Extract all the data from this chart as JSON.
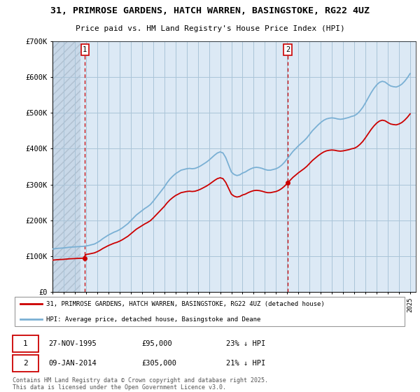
{
  "title": "31, PRIMROSE GARDENS, HATCH WARREN, BASINGSTOKE, RG22 4UZ",
  "subtitle": "Price paid vs. HM Land Registry's House Price Index (HPI)",
  "purchase1_date": "27-NOV-1995",
  "purchase1_price": 95000,
  "purchase1_label": "23% ↓ HPI",
  "purchase2_date": "09-JAN-2014",
  "purchase2_price": 305000,
  "purchase2_label": "21% ↓ HPI",
  "legend_line1": "31, PRIMROSE GARDENS, HATCH WARREN, BASINGSTOKE, RG22 4UZ (detached house)",
  "legend_line2": "HPI: Average price, detached house, Basingstoke and Deane",
  "footer": "Contains HM Land Registry data © Crown copyright and database right 2025.\nThis data is licensed under the Open Government Licence v3.0.",
  "ylim": [
    0,
    700000
  ],
  "yticks": [
    0,
    100000,
    200000,
    300000,
    400000,
    500000,
    600000,
    700000
  ],
  "ytick_labels": [
    "£0",
    "£100K",
    "£200K",
    "£300K",
    "£400K",
    "£500K",
    "£600K",
    "£700K"
  ],
  "red_color": "#cc0000",
  "blue_color": "#7ab0d4",
  "background_color": "#dce9f5",
  "hatch_area_color": "#e8e8e8",
  "grid_color": "#aac4d8",
  "purchase1_year": 1995.9,
  "purchase2_year": 2014.05,
  "xmin": 1993.0,
  "xmax": 2025.5,
  "hpi_years": [
    1993.0,
    1993.25,
    1993.5,
    1993.75,
    1994.0,
    1994.25,
    1994.5,
    1994.75,
    1995.0,
    1995.25,
    1995.5,
    1995.75,
    1996.0,
    1996.25,
    1996.5,
    1996.75,
    1997.0,
    1997.25,
    1997.5,
    1997.75,
    1998.0,
    1998.25,
    1998.5,
    1998.75,
    1999.0,
    1999.25,
    1999.5,
    1999.75,
    2000.0,
    2000.25,
    2000.5,
    2000.75,
    2001.0,
    2001.25,
    2001.5,
    2001.75,
    2002.0,
    2002.25,
    2002.5,
    2002.75,
    2003.0,
    2003.25,
    2003.5,
    2003.75,
    2004.0,
    2004.25,
    2004.5,
    2004.75,
    2005.0,
    2005.25,
    2005.5,
    2005.75,
    2006.0,
    2006.25,
    2006.5,
    2006.75,
    2007.0,
    2007.25,
    2007.5,
    2007.75,
    2008.0,
    2008.25,
    2008.5,
    2008.75,
    2009.0,
    2009.25,
    2009.5,
    2009.75,
    2010.0,
    2010.25,
    2010.5,
    2010.75,
    2011.0,
    2011.25,
    2011.5,
    2011.75,
    2012.0,
    2012.25,
    2012.5,
    2012.75,
    2013.0,
    2013.25,
    2013.5,
    2013.75,
    2014.0,
    2014.25,
    2014.5,
    2014.75,
    2015.0,
    2015.25,
    2015.5,
    2015.75,
    2016.0,
    2016.25,
    2016.5,
    2016.75,
    2017.0,
    2017.25,
    2017.5,
    2017.75,
    2018.0,
    2018.25,
    2018.5,
    2018.75,
    2019.0,
    2019.25,
    2019.5,
    2019.75,
    2020.0,
    2020.25,
    2020.5,
    2020.75,
    2021.0,
    2021.25,
    2021.5,
    2021.75,
    2022.0,
    2022.25,
    2022.5,
    2022.75,
    2023.0,
    2023.25,
    2023.5,
    2023.75,
    2024.0,
    2024.25,
    2024.5,
    2024.75,
    2025.0
  ],
  "hpi_values": [
    120000,
    121000,
    122000,
    122500,
    123000,
    124000,
    125000,
    125500,
    126000,
    126500,
    127000,
    127500,
    128500,
    130000,
    132000,
    134000,
    138000,
    143000,
    149000,
    154000,
    159000,
    163000,
    167000,
    170000,
    174000,
    179000,
    185000,
    191000,
    199000,
    207000,
    215000,
    221000,
    227000,
    233000,
    238000,
    244000,
    253000,
    263000,
    273000,
    283000,
    293000,
    305000,
    315000,
    323000,
    330000,
    335000,
    340000,
    342000,
    344000,
    345000,
    344000,
    345000,
    348000,
    352000,
    357000,
    362000,
    368000,
    375000,
    382000,
    388000,
    391000,
    388000,
    375000,
    355000,
    335000,
    328000,
    325000,
    327000,
    332000,
    335000,
    340000,
    344000,
    347000,
    348000,
    347000,
    345000,
    342000,
    340000,
    340000,
    342000,
    344000,
    348000,
    354000,
    362000,
    372000,
    382000,
    392000,
    400000,
    408000,
    415000,
    422000,
    430000,
    440000,
    450000,
    458000,
    466000,
    473000,
    479000,
    483000,
    485000,
    486000,
    485000,
    483000,
    482000,
    483000,
    485000,
    487000,
    490000,
    492000,
    497000,
    505000,
    515000,
    528000,
    542000,
    556000,
    568000,
    578000,
    585000,
    588000,
    586000,
    580000,
    575000,
    573000,
    572000,
    575000,
    580000,
    588000,
    598000,
    610000
  ]
}
